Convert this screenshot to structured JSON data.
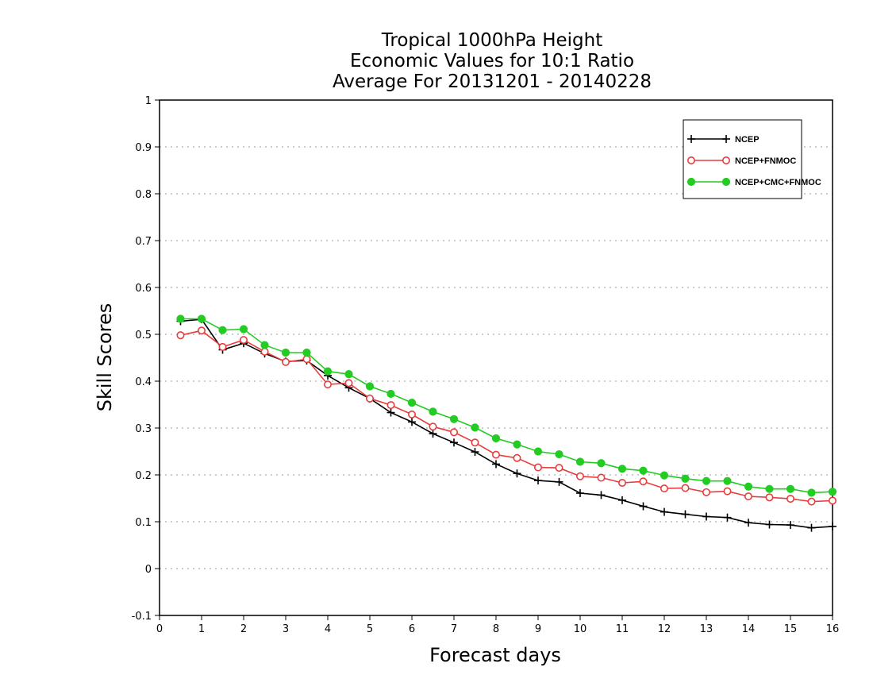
{
  "chart_data": {
    "type": "line",
    "title": [
      "Tropical 1000hPa Height",
      "Economic Values for 10:1 Ratio",
      "Average For 20131201 - 20140228"
    ],
    "xlabel": "Forecast days",
    "ylabel": "Skill Scores",
    "xlim": [
      0,
      16
    ],
    "ylim": [
      -0.1,
      1
    ],
    "xticks": [
      0,
      1,
      2,
      3,
      4,
      5,
      6,
      7,
      8,
      9,
      10,
      11,
      12,
      13,
      14,
      15,
      16
    ],
    "yticks": [
      -0.1,
      0,
      0.1,
      0.2,
      0.3,
      0.4,
      0.5,
      0.6,
      0.7,
      0.8,
      0.9,
      1
    ],
    "ytick_labels": [
      "-0.1",
      "0",
      "0.1",
      "0.2",
      "0.3",
      "0.4",
      "0.5",
      "0.6",
      "0.7",
      "0.8",
      "0.9",
      "1"
    ],
    "grid": "horizontal dotted",
    "legend_position": "top-right",
    "x": [
      0.5,
      1,
      1.5,
      2,
      2.5,
      3,
      3.5,
      4,
      4.5,
      5,
      5.5,
      6,
      6.5,
      7,
      7.5,
      8,
      8.5,
      9,
      9.5,
      10,
      10.5,
      11,
      11.5,
      12,
      12.5,
      13,
      13.5,
      14,
      14.5,
      15,
      15.5,
      16
    ],
    "series": [
      {
        "name": "NCEP",
        "color": "#000000",
        "marker": "plus",
        "values": [
          0.528,
          0.532,
          0.467,
          0.481,
          0.459,
          0.442,
          0.444,
          0.412,
          0.386,
          0.363,
          0.333,
          0.313,
          0.288,
          0.269,
          0.249,
          0.223,
          0.203,
          0.188,
          0.185,
          0.161,
          0.157,
          0.146,
          0.133,
          0.121,
          0.116,
          0.111,
          0.109,
          0.098,
          0.094,
          0.093,
          0.087,
          0.09
        ]
      },
      {
        "name": "NCEP+FNMOC",
        "color": "#e83c3c",
        "marker": "open-circle",
        "values": [
          0.498,
          0.508,
          0.473,
          0.488,
          0.463,
          0.441,
          0.447,
          0.393,
          0.396,
          0.363,
          0.349,
          0.329,
          0.303,
          0.291,
          0.269,
          0.243,
          0.236,
          0.216,
          0.215,
          0.197,
          0.194,
          0.183,
          0.186,
          0.171,
          0.172,
          0.163,
          0.165,
          0.154,
          0.152,
          0.149,
          0.143,
          0.145
        ]
      },
      {
        "name": "NCEP+CMC+FNMOC",
        "color": "#22cc22",
        "marker": "filled-circle",
        "values": [
          0.533,
          0.533,
          0.509,
          0.511,
          0.477,
          0.461,
          0.461,
          0.421,
          0.415,
          0.389,
          0.373,
          0.354,
          0.335,
          0.319,
          0.301,
          0.278,
          0.265,
          0.25,
          0.244,
          0.228,
          0.225,
          0.213,
          0.209,
          0.199,
          0.192,
          0.187,
          0.187,
          0.175,
          0.17,
          0.17,
          0.162,
          0.164
        ]
      }
    ]
  }
}
